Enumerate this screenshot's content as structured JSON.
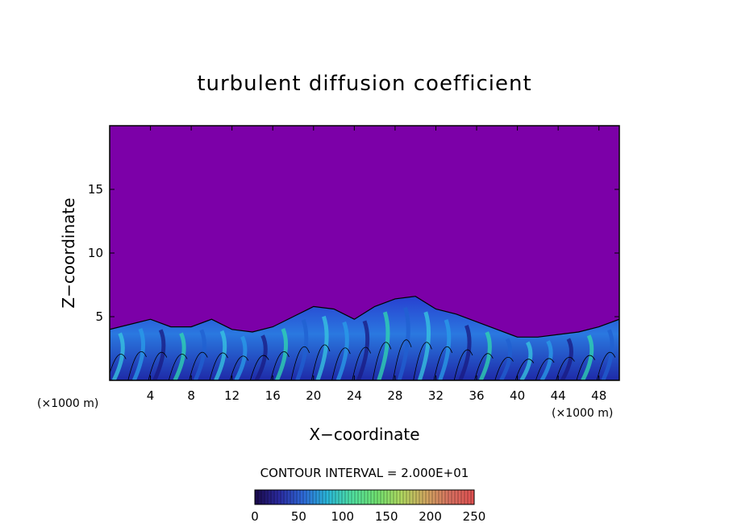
{
  "chart_data": {
    "type": "heatmap",
    "title": "turbulent diffusion coefficient",
    "xlabel": "X−coordinate",
    "ylabel": "Z−coordinate",
    "x_unit_left": "(×1000 m)",
    "x_unit_right": "(×1000 m)",
    "xlim": [
      0,
      50
    ],
    "ylim": [
      0,
      20
    ],
    "x_ticks": [
      4,
      8,
      12,
      16,
      20,
      24,
      28,
      32,
      36,
      40,
      44,
      48
    ],
    "y_ticks": [
      5,
      10,
      15
    ],
    "contour_interval_text": "CONTOUR INTERVAL = 2.000E+01",
    "colorbar": {
      "min": 0,
      "max": 250,
      "tick_values": [
        0,
        50,
        100,
        150,
        200,
        250
      ],
      "colors": [
        "#1a0a4a",
        "#2a2aa0",
        "#2e6ad8",
        "#2ab8d8",
        "#50e0a0",
        "#70e070",
        "#b0d860",
        "#d0a860",
        "#d87060",
        "#e05050"
      ]
    },
    "background_color": "#7c00a8",
    "turbulent_layer_top_profile": {
      "x": [
        0,
        2,
        4,
        6,
        8,
        10,
        12,
        14,
        16,
        18,
        20,
        22,
        24,
        26,
        28,
        30,
        32,
        34,
        36,
        38,
        40,
        42,
        44,
        46,
        48,
        50
      ],
      "z": [
        4.0,
        4.4,
        4.8,
        4.2,
        4.2,
        4.8,
        4.0,
        3.8,
        4.2,
        5.0,
        5.8,
        5.6,
        4.8,
        5.8,
        6.4,
        6.6,
        5.6,
        5.2,
        4.6,
        4.0,
        3.4,
        3.4,
        3.6,
        3.8,
        4.2,
        4.8
      ]
    }
  }
}
